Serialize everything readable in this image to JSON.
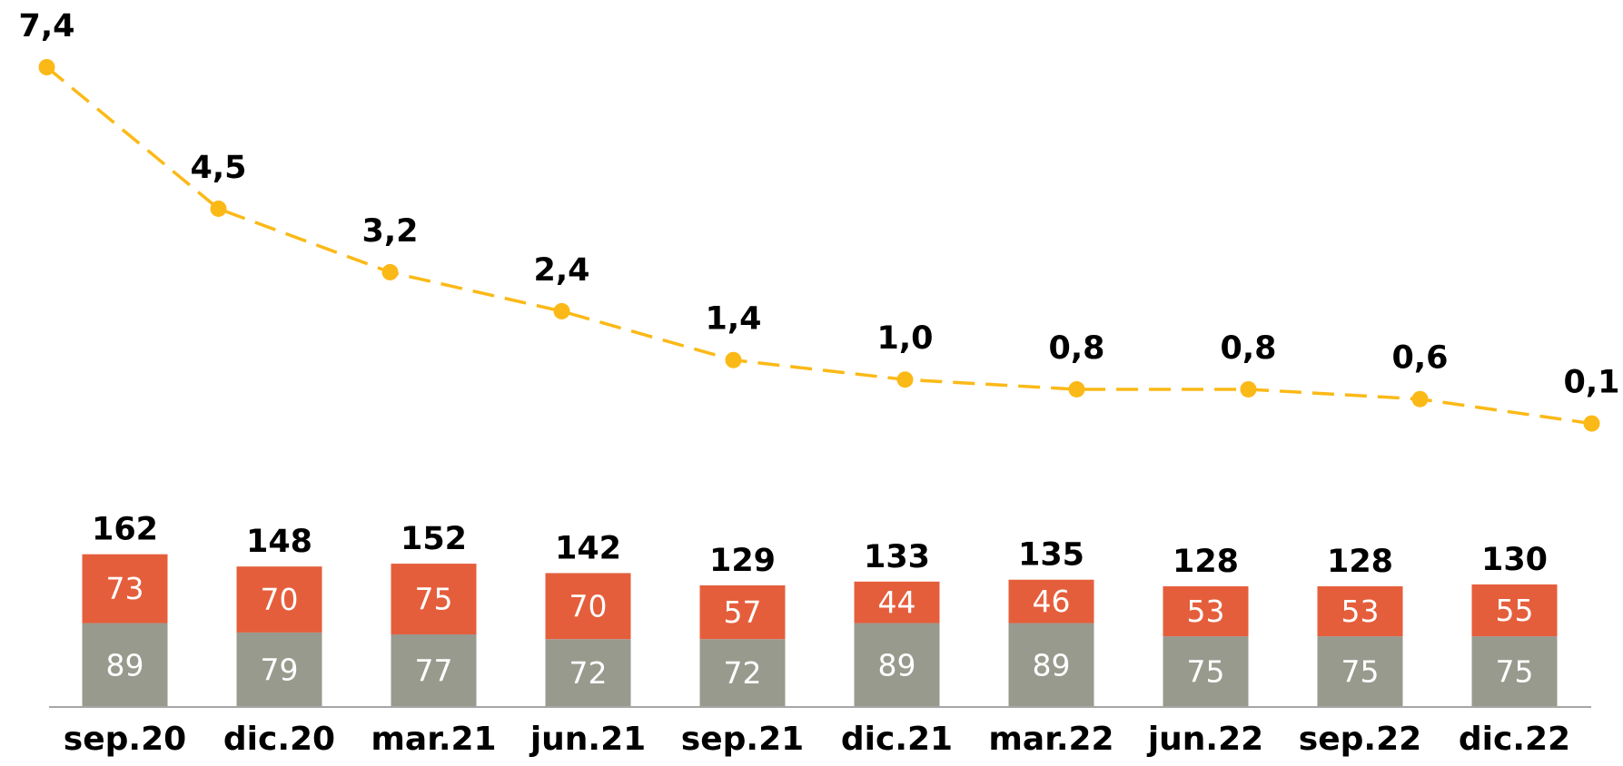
{
  "chart_data": {
    "type": "bar",
    "stacked": true,
    "categories": [
      "sep.20",
      "dic.20",
      "mar.21",
      "jun.21",
      "sep.21",
      "dic.21",
      "mar.22",
      "jun.22",
      "sep.22",
      "dic.22"
    ],
    "ylim": [
      0,
      180
    ],
    "series": [
      {
        "color": "#999a8e",
        "values": [
          89,
          79,
          77,
          72,
          72,
          89,
          89,
          75,
          75,
          75
        ]
      },
      {
        "color": "#e55e3c",
        "values": [
          73,
          70,
          75,
          70,
          57,
          44,
          46,
          53,
          53,
          55
        ]
      }
    ],
    "totals": [
      162,
      148,
      152,
      142,
      129,
      133,
      135,
      128,
      128,
      130
    ],
    "line": {
      "type": "line",
      "color": "#fbb917",
      "dashed": true,
      "values": [
        7.4,
        4.5,
        3.2,
        2.4,
        1.4,
        1.0,
        0.8,
        0.8,
        0.6,
        0.1
      ],
      "value_labels": [
        "7,4",
        "4,5",
        "3,2",
        "2,4",
        "1,4",
        "1,0",
        "0,8",
        "0,8",
        "0,6",
        "0,1"
      ],
      "y2lim": [
        0,
        7.4
      ]
    }
  }
}
